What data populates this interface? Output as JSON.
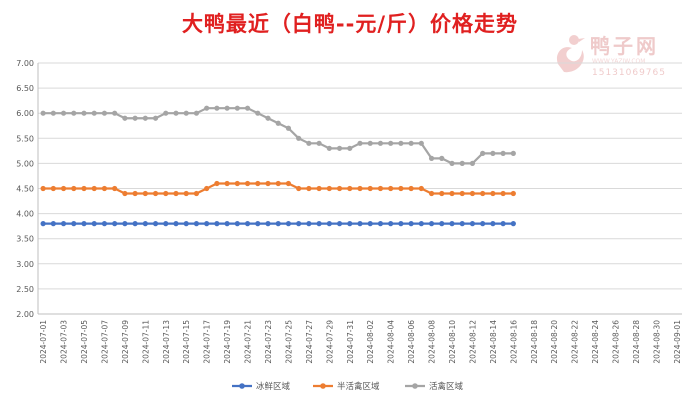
{
  "chart_data": {
    "type": "line",
    "title": "大鸭最近（白鸭--元/斤）价格走势",
    "ylim": [
      2.0,
      7.0
    ],
    "yticks": [
      "7.00",
      "6.50",
      "6.00",
      "5.50",
      "5.00",
      "4.50",
      "4.00",
      "3.50",
      "3.00",
      "2.50",
      "2.00"
    ],
    "xticks": [
      "2024-07-01",
      "2024-07-03",
      "2024-07-05",
      "2024-07-07",
      "2024-07-09",
      "2024-07-11",
      "2024-07-13",
      "2024-07-15",
      "2024-07-17",
      "2024-07-19",
      "2024-07-21",
      "2024-07-23",
      "2024-07-25",
      "2024-07-27",
      "2024-07-29",
      "2024-07-31",
      "2024-08-02",
      "2024-08-04",
      "2024-08-06",
      "2024-08-08",
      "2024-08-10",
      "2024-08-12",
      "2024-08-14",
      "2024-08-16",
      "2024-08-18",
      "2024-08-20",
      "2024-08-22",
      "2024-08-24",
      "2024-08-26",
      "2024-08-28",
      "2024-08-30",
      "2024-09-01"
    ],
    "grid": "horizontal",
    "legend_position": "bottom",
    "series": [
      {
        "name": "冰鲜区域",
        "color": "#4472c4",
        "values": [
          3.8,
          3.8,
          3.8,
          3.8,
          3.8,
          3.8,
          3.8,
          3.8,
          3.8,
          3.8,
          3.8,
          3.8,
          3.8,
          3.8,
          3.8,
          3.8,
          3.8,
          3.8,
          3.8,
          3.8,
          3.8,
          3.8,
          3.8,
          3.8,
          3.8,
          3.8,
          3.8,
          3.8,
          3.8,
          3.8,
          3.8,
          3.8,
          3.8,
          3.8,
          3.8,
          3.8,
          3.8,
          3.8,
          3.8,
          3.8,
          3.8,
          3.8,
          3.8,
          3.8,
          3.8,
          3.8,
          3.8
        ]
      },
      {
        "name": "半活禽区域",
        "color": "#ed7d31",
        "values": [
          4.5,
          4.5,
          4.5,
          4.5,
          4.5,
          4.5,
          4.5,
          4.5,
          4.4,
          4.4,
          4.4,
          4.4,
          4.4,
          4.4,
          4.4,
          4.4,
          4.5,
          4.6,
          4.6,
          4.6,
          4.6,
          4.6,
          4.6,
          4.6,
          4.6,
          4.5,
          4.5,
          4.5,
          4.5,
          4.5,
          4.5,
          4.5,
          4.5,
          4.5,
          4.5,
          4.5,
          4.5,
          4.5,
          4.4,
          4.4,
          4.4,
          4.4,
          4.4,
          4.4,
          4.4,
          4.4,
          4.4
        ]
      },
      {
        "name": "活禽区域",
        "color": "#a5a5a5",
        "values": [
          6.0,
          6.0,
          6.0,
          6.0,
          6.0,
          6.0,
          6.0,
          6.0,
          5.9,
          5.9,
          5.9,
          5.9,
          6.0,
          6.0,
          6.0,
          6.0,
          6.1,
          6.1,
          6.1,
          6.1,
          6.1,
          6.0,
          5.9,
          5.8,
          5.7,
          5.5,
          5.4,
          5.4,
          5.3,
          5.3,
          5.3,
          5.4,
          5.4,
          5.4,
          5.4,
          5.4,
          5.4,
          5.4,
          5.1,
          5.1,
          5.0,
          5.0,
          5.0,
          5.2,
          5.2,
          5.2,
          5.2
        ]
      }
    ]
  },
  "logo": {
    "name": "鸭子网",
    "url": "WWW.YAZIW.COM",
    "phone": "15131069765"
  }
}
